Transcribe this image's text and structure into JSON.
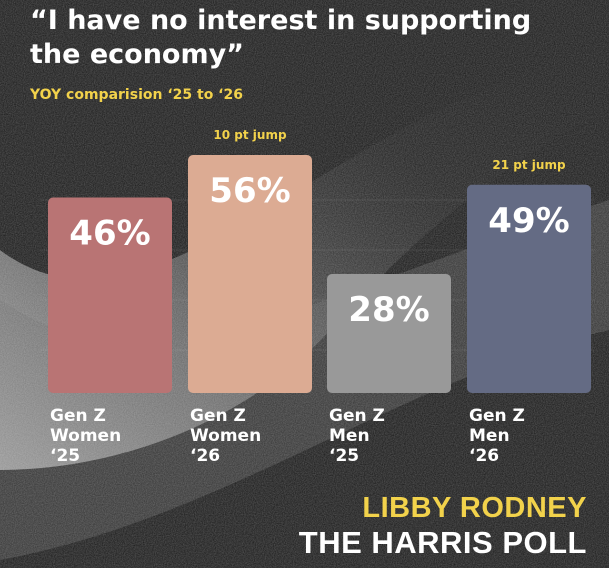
{
  "header": {
    "title": "“I have no interest in supporting the economy”",
    "subtitle": "YOY comparision ‘25 to ‘26"
  },
  "credits": {
    "author": "LIBBY RODNEY",
    "organization": "THE HARRIS POLL"
  },
  "colors": {
    "background": "#1c1c1c",
    "accent": "#f2d24b",
    "text": "#ffffff"
  },
  "chart_data": {
    "type": "bar",
    "title": "“I have no interest in supporting the economy”",
    "subtitle": "YOY comparision ‘25 to ‘26",
    "categories": [
      [
        "Gen Z",
        "Women",
        "‘25"
      ],
      [
        "Gen Z",
        "Women",
        "‘26"
      ],
      [
        "Gen Z",
        "Men",
        "‘25"
      ],
      [
        "Gen Z",
        "Men",
        "‘26"
      ]
    ],
    "values": [
      46,
      56,
      28,
      49
    ],
    "value_labels": [
      "46%",
      "56%",
      "28%",
      "49%"
    ],
    "bar_colors": [
      "#b97474",
      "#dcab93",
      "#999999",
      "#646b84"
    ],
    "annotations": [
      {
        "bar_index": 1,
        "text": "10 pt jump"
      },
      {
        "bar_index": 3,
        "text": "21 pt jump"
      }
    ],
    "ylim": [
      0,
      100
    ],
    "grid": true,
    "legend": "none"
  }
}
